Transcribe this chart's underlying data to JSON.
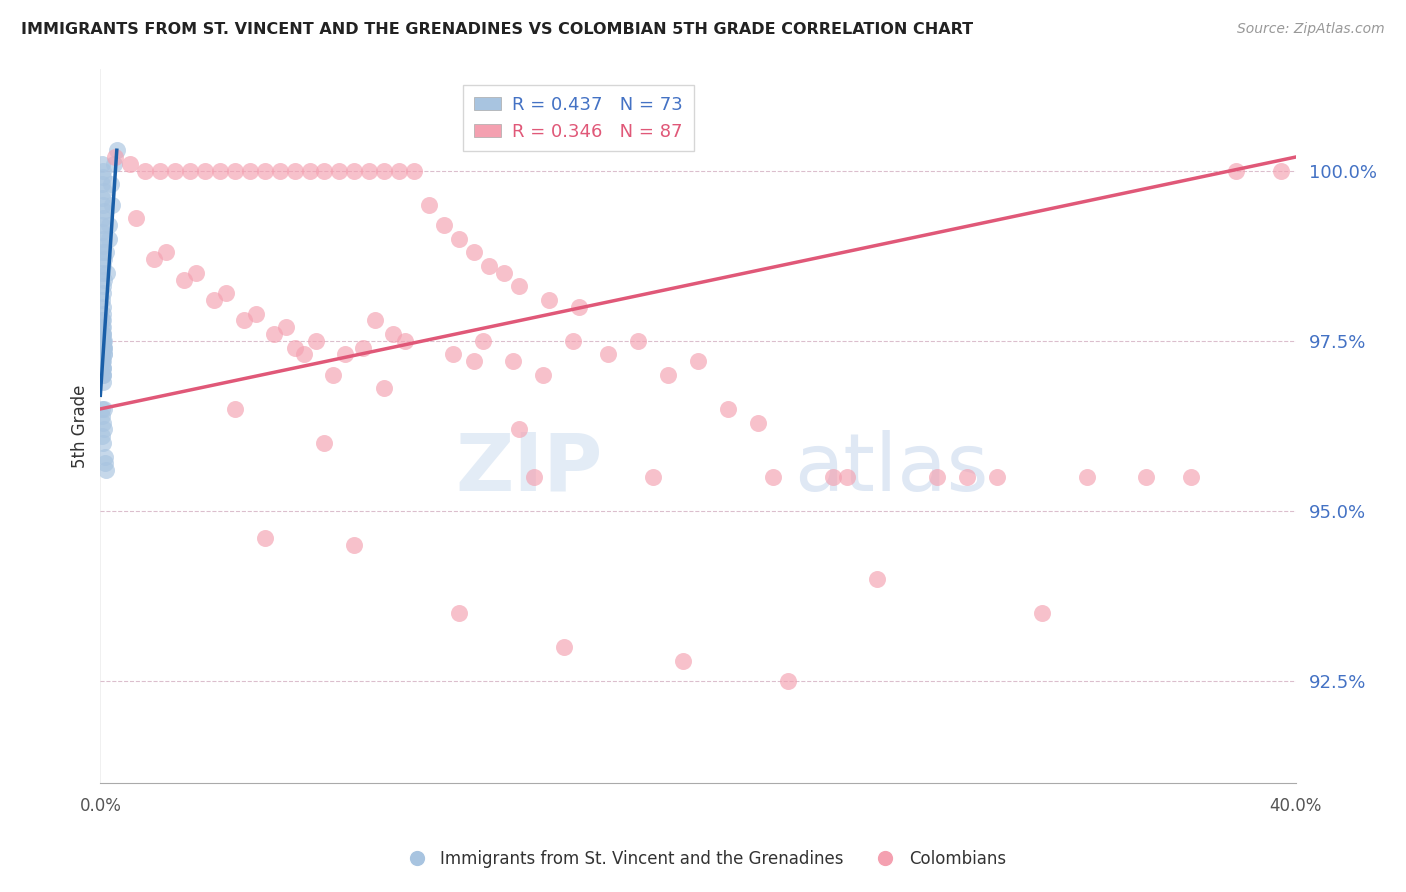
{
  "title": "IMMIGRANTS FROM ST. VINCENT AND THE GRENADINES VS COLOMBIAN 5TH GRADE CORRELATION CHART",
  "source": "Source: ZipAtlas.com",
  "ylabel": "5th Grade",
  "yticks": [
    92.5,
    95.0,
    97.5,
    100.0
  ],
  "ytick_labels": [
    "92.5%",
    "95.0%",
    "97.5%",
    "100.0%"
  ],
  "xlim": [
    0.0,
    40.0
  ],
  "ylim": [
    91.0,
    101.2
  ],
  "blue_R": 0.437,
  "blue_N": 73,
  "pink_R": 0.346,
  "pink_N": 87,
  "blue_color": "#a8c4e0",
  "pink_color": "#f4a0b0",
  "blue_line_color": "#1a5fa8",
  "pink_line_color": "#e05878",
  "blue_label": "Immigrants from St. Vincent and the Grenadines",
  "pink_label": "Colombians",
  "blue_line_x": [
    0.0,
    0.55
  ],
  "blue_line_y": [
    96.7,
    100.3
  ],
  "pink_line_x": [
    0.0,
    40.0
  ],
  "pink_line_y": [
    96.5,
    100.2
  ],
  "blue_x": [
    0.05,
    0.08,
    0.1,
    0.06,
    0.12,
    0.07,
    0.09,
    0.11,
    0.08,
    0.06,
    0.05,
    0.09,
    0.1,
    0.07,
    0.13,
    0.08,
    0.06,
    0.11,
    0.09,
    0.1,
    0.07,
    0.08,
    0.09,
    0.1,
    0.06,
    0.08,
    0.11,
    0.05,
    0.07,
    0.09,
    0.1,
    0.06,
    0.08,
    0.12,
    0.05,
    0.07,
    0.09,
    0.1,
    0.06,
    0.08,
    0.12,
    0.05,
    0.07,
    0.09,
    0.1,
    0.06,
    0.08,
    0.11,
    0.05,
    0.07,
    0.09,
    0.1,
    0.06,
    0.08,
    0.12,
    0.05,
    0.07,
    0.09,
    0.11,
    0.06,
    0.08,
    0.13,
    0.14,
    0.15,
    0.18,
    0.22,
    0.28,
    0.35,
    0.45,
    0.55,
    0.3,
    0.4,
    0.2
  ],
  "blue_y": [
    100.1,
    100.0,
    99.9,
    99.8,
    99.7,
    99.6,
    99.5,
    99.4,
    99.3,
    99.2,
    99.1,
    99.0,
    98.9,
    98.8,
    98.7,
    98.6,
    98.5,
    98.4,
    98.3,
    98.2,
    98.1,
    98.0,
    97.9,
    97.8,
    97.7,
    97.6,
    97.5,
    97.4,
    97.3,
    97.2,
    97.1,
    97.0,
    97.5,
    97.4,
    97.3,
    97.2,
    97.1,
    97.0,
    97.6,
    97.5,
    97.4,
    97.3,
    97.8,
    97.7,
    97.6,
    97.5,
    97.4,
    97.3,
    97.2,
    97.1,
    97.0,
    96.9,
    97.5,
    97.4,
    97.3,
    96.5,
    96.4,
    96.3,
    96.2,
    96.1,
    96.0,
    96.5,
    95.8,
    95.7,
    95.6,
    98.5,
    99.2,
    99.8,
    100.1,
    100.3,
    99.0,
    99.5,
    98.8
  ],
  "pink_x": [
    0.5,
    1.0,
    1.5,
    2.0,
    2.5,
    3.0,
    3.5,
    4.0,
    4.5,
    5.0,
    5.5,
    6.0,
    6.5,
    7.0,
    7.5,
    8.0,
    8.5,
    9.0,
    9.5,
    10.0,
    10.5,
    11.0,
    11.5,
    12.0,
    12.5,
    13.0,
    13.5,
    14.0,
    15.0,
    16.0,
    1.2,
    2.2,
    3.2,
    4.2,
    5.2,
    6.2,
    7.2,
    8.2,
    9.2,
    10.2,
    1.8,
    2.8,
    3.8,
    4.8,
    5.8,
    6.8,
    7.8,
    8.8,
    9.8,
    11.8,
    12.8,
    13.8,
    14.8,
    15.8,
    17.0,
    18.0,
    19.0,
    20.0,
    21.0,
    22.0,
    6.5,
    9.5,
    12.5,
    14.5,
    22.5,
    25.0,
    28.0,
    30.0,
    35.0,
    38.0,
    4.5,
    7.5,
    14.0,
    18.5,
    24.5,
    29.0,
    33.0,
    36.5,
    39.5,
    5.5,
    8.5,
    12.0,
    15.5,
    19.5,
    23.0,
    26.0,
    31.5
  ],
  "pink_y": [
    100.2,
    100.1,
    100.0,
    100.0,
    100.0,
    100.0,
    100.0,
    100.0,
    100.0,
    100.0,
    100.0,
    100.0,
    100.0,
    100.0,
    100.0,
    100.0,
    100.0,
    100.0,
    100.0,
    100.0,
    100.0,
    99.5,
    99.2,
    99.0,
    98.8,
    98.6,
    98.5,
    98.3,
    98.1,
    98.0,
    99.3,
    98.8,
    98.5,
    98.2,
    97.9,
    97.7,
    97.5,
    97.3,
    97.8,
    97.5,
    98.7,
    98.4,
    98.1,
    97.8,
    97.6,
    97.3,
    97.0,
    97.4,
    97.6,
    97.3,
    97.5,
    97.2,
    97.0,
    97.5,
    97.3,
    97.5,
    97.0,
    97.2,
    96.5,
    96.3,
    97.4,
    96.8,
    97.2,
    95.5,
    95.5,
    95.5,
    95.5,
    95.5,
    95.5,
    100.0,
    96.5,
    96.0,
    96.2,
    95.5,
    95.5,
    95.5,
    95.5,
    95.5,
    100.0,
    94.6,
    94.5,
    93.5,
    93.0,
    92.8,
    92.5,
    94.0,
    93.5
  ]
}
